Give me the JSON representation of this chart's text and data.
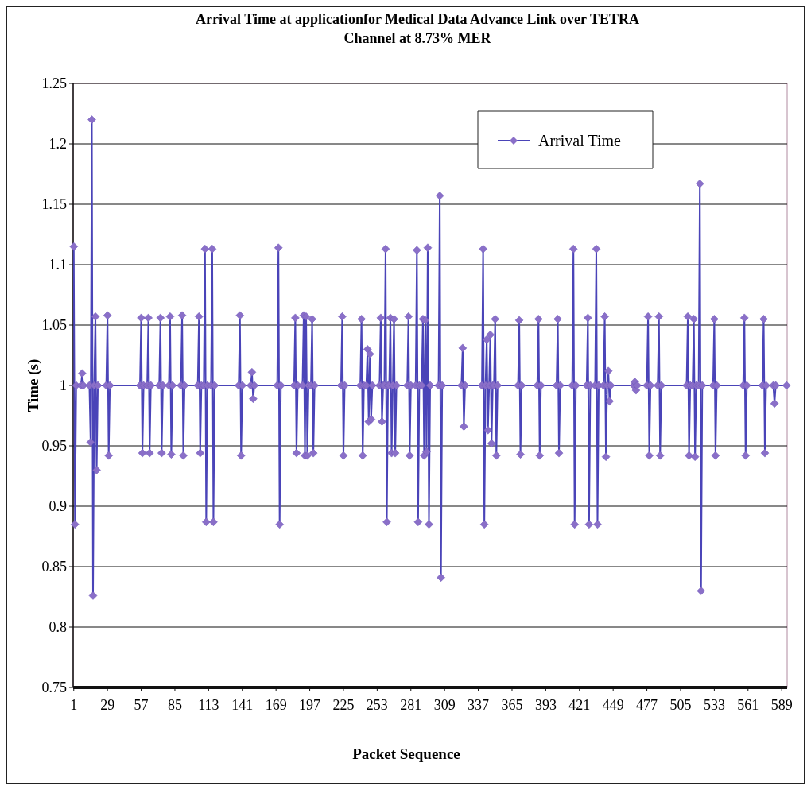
{
  "chart_data": {
    "type": "line",
    "title": "Arrival Time at applicationfor Medical Data Advance Link over TETRA Channel at 8.73% MER",
    "xlabel": "Packet Sequence",
    "ylabel": "Time (s)",
    "xlim": [
      0.5,
      593.5
    ],
    "xticks": [
      1,
      29,
      57,
      85,
      113,
      141,
      169,
      197,
      225,
      253,
      281,
      309,
      337,
      365,
      393,
      421,
      449,
      477,
      505,
      533,
      561,
      589
    ],
    "ylim": [
      0.75,
      1.25
    ],
    "yticks": [
      0.75,
      0.8,
      0.85,
      0.9,
      0.95,
      1,
      1.05,
      1.1,
      1.15,
      1.2,
      1.25
    ],
    "grid": "y",
    "legend": "top right",
    "marker": "diamond",
    "line_style": "solid",
    "series": [
      {
        "name": "Arrival Time",
        "color": "#4a44b8",
        "x": [
          1,
          2,
          3,
          7,
          8,
          9,
          14,
          15,
          16,
          17,
          18,
          19,
          20,
          21,
          28,
          29,
          30,
          31,
          56,
          57,
          58,
          59,
          62,
          63,
          64,
          65,
          72,
          73,
          74,
          75,
          80,
          81,
          82,
          83,
          90,
          91,
          92,
          93,
          104,
          105,
          106,
          107,
          109,
          110,
          111,
          112,
          115,
          116,
          117,
          118,
          138,
          139,
          140,
          141,
          148,
          149,
          150,
          151,
          170,
          171,
          172,
          173,
          184,
          185,
          186,
          187,
          191,
          192,
          193,
          194,
          195,
          196,
          198,
          199,
          200,
          201,
          223,
          224,
          225,
          226,
          239,
          240,
          241,
          242,
          244,
          245,
          246,
          247,
          248,
          249,
          255,
          256,
          257,
          258,
          259,
          260,
          261,
          262,
          263,
          264,
          265,
          266,
          267,
          268,
          269,
          278,
          279,
          280,
          281,
          285,
          286,
          287,
          288,
          290,
          291,
          292,
          293,
          294,
          295,
          296,
          297,
          304,
          305,
          306,
          307,
          323,
          324,
          325,
          326,
          340,
          341,
          342,
          343,
          344,
          345,
          346,
          347,
          348,
          349,
          350,
          351,
          352,
          353,
          370,
          371,
          372,
          373,
          386,
          387,
          388,
          389,
          402,
          403,
          404,
          405,
          415,
          416,
          417,
          418,
          427,
          428,
          429,
          430,
          434,
          435,
          436,
          437,
          441,
          442,
          443,
          444,
          445,
          446,
          447,
          466,
          467,
          468,
          469,
          477,
          478,
          479,
          480,
          486,
          487,
          488,
          489,
          510,
          511,
          512,
          513,
          515,
          516,
          517,
          518,
          520,
          521,
          522,
          523,
          532,
          533,
          534,
          535,
          557,
          558,
          559,
          560,
          573,
          574,
          575,
          576,
          582,
          583,
          584,
          593
        ],
        "values": [
          1.115,
          0.885,
          1,
          1,
          1.01,
          1,
          1,
          0.953,
          1.22,
          0.826,
          1,
          1.057,
          0.93,
          1,
          1,
          1.058,
          0.942,
          1,
          1,
          1.056,
          0.944,
          1,
          1,
          1.056,
          0.944,
          1,
          1,
          1.056,
          0.944,
          1,
          1,
          1.057,
          0.943,
          1,
          1,
          1.058,
          0.942,
          1,
          1,
          1.057,
          0.944,
          1,
          1,
          1.113,
          0.887,
          1,
          1,
          1.113,
          0.887,
          1,
          1,
          1.058,
          0.942,
          1,
          1,
          1.011,
          0.989,
          1,
          1,
          1.114,
          0.885,
          1,
          1,
          1.056,
          0.944,
          1,
          1,
          1.058,
          0.942,
          1.057,
          0.942,
          1,
          1,
          1.055,
          0.944,
          1,
          1,
          1.057,
          0.942,
          1,
          1,
          1.055,
          0.942,
          1,
          1,
          1.03,
          0.97,
          1.026,
          0.972,
          1,
          1,
          1.056,
          0.97,
          1,
          1,
          1.113,
          0.887,
          1,
          1,
          1.056,
          0.944,
          1,
          1.055,
          0.944,
          1,
          1,
          1.057,
          0.942,
          1,
          1,
          1.112,
          0.887,
          1,
          1,
          1.055,
          0.942,
          1.054,
          0.945,
          1.114,
          0.885,
          1,
          1,
          1.157,
          0.841,
          1,
          1,
          1.031,
          0.966,
          1,
          1,
          1.113,
          0.885,
          1,
          1.038,
          0.963,
          1,
          1.042,
          0.952,
          1,
          1,
          1.055,
          0.942,
          1,
          1,
          1.054,
          0.943,
          1,
          1,
          1.055,
          0.942,
          1,
          1,
          1.055,
          0.944,
          1,
          1,
          1.113,
          0.885,
          1,
          1,
          1.056,
          0.885,
          1,
          1,
          1.113,
          0.885,
          1,
          1,
          1.057,
          0.941,
          1,
          1.012,
          0.987,
          1,
          1,
          1.003,
          0.996,
          1,
          1,
          1.057,
          0.942,
          1,
          1,
          1.057,
          0.942,
          1,
          1,
          1.057,
          0.942,
          1,
          1,
          1.055,
          0.941,
          1,
          1,
          1.167,
          0.83,
          1,
          1,
          1.055,
          0.942,
          1,
          1,
          1.056,
          0.942,
          1,
          1,
          1.055,
          0.944,
          1,
          1,
          0.985,
          1,
          1
        ]
      }
    ]
  }
}
